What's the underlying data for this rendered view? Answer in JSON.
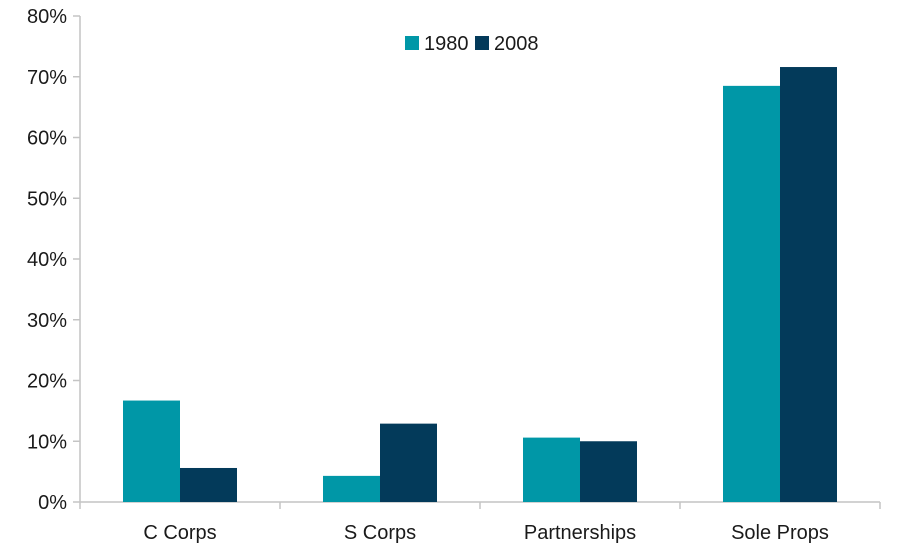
{
  "chart_data": {
    "type": "bar",
    "title": "",
    "xlabel": "",
    "ylabel": "",
    "categories": [
      "C Corps",
      "S Corps",
      "Partnerships",
      "Sole Props"
    ],
    "series": [
      {
        "name": "1980",
        "values": [
          16.7,
          4.3,
          10.6,
          68.5
        ],
        "color": "#0097A7"
      },
      {
        "name": "2008",
        "values": [
          5.6,
          12.9,
          10.0,
          71.6
        ],
        "color": "#033A5A"
      }
    ],
    "ylim": [
      0,
      80
    ],
    "yticks": [
      0,
      10,
      20,
      30,
      40,
      50,
      60,
      70,
      80
    ],
    "ytick_labels": [
      "0%",
      "10%",
      "20%",
      "30%",
      "40%",
      "50%",
      "60%",
      "70%",
      "80%"
    ],
    "grid": false,
    "legend": "top-center"
  }
}
